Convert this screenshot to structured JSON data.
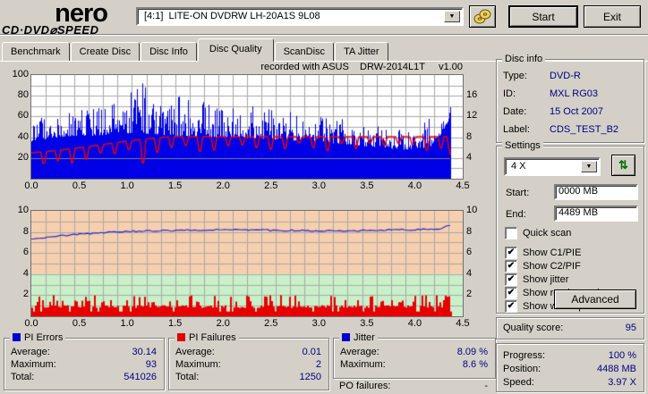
{
  "header": {
    "logo_line1": "nero",
    "logo_line2": "CD·DVD⌀SPEED",
    "drive_selector": {
      "value": "[4:1]  LITE-ON DVDRW LH-20A1S 9L08"
    },
    "start_label": "Start",
    "exit_label": "Exit"
  },
  "tabs": [
    {
      "label": "Benchmark",
      "active": false
    },
    {
      "label": "Create Disc",
      "active": false
    },
    {
      "label": "Disc Info",
      "active": false
    },
    {
      "label": "Disc Quality",
      "active": true
    },
    {
      "label": "ScanDisc",
      "active": false
    },
    {
      "label": "TA Jitter",
      "active": false
    }
  ],
  "chart": {
    "recorded_with": "recorded with ASUS    DRW-2014L1T     v1.00",
    "axes": {
      "top_left": [
        "100",
        "80",
        "60",
        "40",
        "20"
      ],
      "top_right": [
        "16",
        "12",
        "8",
        "4"
      ],
      "bottom_left": [
        "10",
        "8",
        "6",
        "4",
        "2"
      ],
      "bottom_right": [
        "10",
        "8",
        "6",
        "4",
        "2"
      ],
      "x": [
        "0.0",
        "0.5",
        "1.0",
        "1.5",
        "2.0",
        "2.5",
        "3.0",
        "3.5",
        "4.0",
        "4.5"
      ]
    }
  },
  "chart_data": [
    {
      "type": "area",
      "name": "PI Errors / speed vs position",
      "x_unit": "GB",
      "x_max": 4.5,
      "data_end_gb": 4.37,
      "ylim_left": [
        0,
        100
      ],
      "right_axis_speed_ticks": [
        4,
        8,
        12,
        16
      ],
      "series": [
        {
          "name": "PI Errors",
          "style": "spike-area",
          "color": "#0000e6",
          "average": 30.14,
          "maximum": 93,
          "total": 541026,
          "lower_envelope": [
            [
              0,
              36
            ],
            [
              0.3,
              40
            ],
            [
              0.8,
              42
            ],
            [
              1.2,
              43
            ],
            [
              1.6,
              41
            ],
            [
              2.0,
              40
            ],
            [
              2.5,
              38
            ],
            [
              3.0,
              35
            ],
            [
              3.3,
              33
            ],
            [
              3.6,
              30
            ],
            [
              3.9,
              28
            ],
            [
              4.15,
              30
            ],
            [
              4.28,
              44
            ],
            [
              4.37,
              60
            ]
          ],
          "upper_envelope": [
            [
              0,
              55
            ],
            [
              0.3,
              66
            ],
            [
              0.6,
              70
            ],
            [
              0.9,
              73
            ],
            [
              1.15,
              93
            ],
            [
              1.3,
              72
            ],
            [
              1.6,
              82
            ],
            [
              2.0,
              70
            ],
            [
              2.3,
              71
            ],
            [
              2.6,
              73
            ],
            [
              3.0,
              60
            ],
            [
              3.4,
              56
            ],
            [
              3.8,
              48
            ],
            [
              4.05,
              52
            ],
            [
              4.2,
              62
            ],
            [
              4.37,
              75
            ]
          ]
        },
        {
          "name": "Write speed",
          "style": "line",
          "color": "#f40000",
          "axis": "right",
          "plateau": [
            [
              0,
              25
            ],
            [
              0.25,
              27
            ],
            [
              0.6,
              31
            ],
            [
              0.9,
              35
            ],
            [
              1.2,
              38.5
            ],
            [
              1.45,
              40.5
            ],
            [
              4.37,
              40.5
            ]
          ],
          "dip_first_gb": 0.13,
          "dip_period_gb": 0.148,
          "deep_dip_gb": 1.21,
          "end_value": 22
        },
        {
          "name": "Read speed",
          "style": "line",
          "color": "#808080",
          "axis": "right",
          "constant_value_x": 4
        }
      ]
    },
    {
      "type": "line",
      "name": "Jitter / PI Failures vs position",
      "x_unit": "GB",
      "x_max": 4.5,
      "data_end_gb": 4.37,
      "ylim": [
        0,
        10
      ],
      "zones": [
        {
          "from": 4,
          "to": 10,
          "color": "#f6cfae"
        },
        {
          "from": 0,
          "to": 4,
          "color": "#c9f0c9"
        }
      ],
      "series": [
        {
          "name": "Jitter",
          "style": "line",
          "color": "#2828cc",
          "average_pct": 8.09,
          "maximum_pct": 8.6,
          "points": [
            [
              0,
              7.35
            ],
            [
              0.2,
              7.55
            ],
            [
              0.5,
              7.8
            ],
            [
              0.8,
              7.95
            ],
            [
              1.0,
              8.05
            ],
            [
              1.5,
              8.15
            ],
            [
              2.0,
              8.2
            ],
            [
              2.6,
              8.15
            ],
            [
              3.2,
              8.1
            ],
            [
              3.8,
              8.2
            ],
            [
              4.25,
              8.25
            ],
            [
              4.37,
              8.6
            ]
          ]
        },
        {
          "name": "PI Failures",
          "style": "bars",
          "color": "#e80000",
          "average": 0.01,
          "maximum": 2,
          "total": 1250
        }
      ]
    }
  ],
  "disc_info": {
    "title": "Disc info",
    "rows": [
      {
        "label": "Type:",
        "value": "DVD-R"
      },
      {
        "label": "ID:",
        "value": "MXL RG03"
      },
      {
        "label": "Date:",
        "value": "15 Oct 2007"
      },
      {
        "label": "Label:",
        "value": "CDS_TEST_B2"
      }
    ]
  },
  "settings": {
    "title": "Settings",
    "speed_selected": "4 X",
    "start_label": "Start:",
    "start_value": "0000 MB",
    "end_label": "End:",
    "end_value": "4489 MB",
    "checkboxes": [
      {
        "label": "Quick scan",
        "checked": false,
        "mark": ""
      },
      {
        "label": "Show C1/PIE",
        "checked": true,
        "mark": "✔"
      },
      {
        "label": "Show C2/PIF",
        "checked": true,
        "mark": "✔"
      },
      {
        "label": "Show jitter",
        "checked": true,
        "mark": "✔"
      },
      {
        "label": "Show read speed",
        "checked": true,
        "mark": "✔"
      },
      {
        "label": "Show write speed",
        "checked": true,
        "mark": "✔"
      }
    ],
    "advanced_label": "Advanced"
  },
  "quality": {
    "label": "Quality score:",
    "value": "95"
  },
  "progress": {
    "rows": [
      {
        "label": "Progress:",
        "value": "100 %"
      },
      {
        "label": "Position:",
        "value": "4488 MB"
      },
      {
        "label": "Speed:",
        "value": "3.97 X"
      }
    ]
  },
  "stats": [
    {
      "title": "PI Errors",
      "marker_color": "#0000cc",
      "rows": [
        {
          "label": "Average:",
          "value": "30.14"
        },
        {
          "label": "Maximum:",
          "value": "93"
        },
        {
          "label": "Total:",
          "value": "541026"
        }
      ]
    },
    {
      "title": "PI Failures",
      "marker_color": "#e00000",
      "rows": [
        {
          "label": "Average:",
          "value": "0.01"
        },
        {
          "label": "Maximum:",
          "value": "2"
        },
        {
          "label": "Total:",
          "value": "1250"
        }
      ]
    },
    {
      "title": "Jitter",
      "marker_color": "#0000cc",
      "rows": [
        {
          "label": "Average:",
          "value": "8.09 %"
        },
        {
          "label": "Maximum:",
          "value": "8.6 %"
        }
      ],
      "footer": {
        "label": "PO failures:",
        "value": "-"
      }
    }
  ],
  "colors": {
    "value_text": "#000080",
    "window_bg": "#d4d0c8",
    "zone_high": "#f6cfae",
    "zone_low": "#c9f0c9",
    "grid": "#a8a8a8"
  }
}
